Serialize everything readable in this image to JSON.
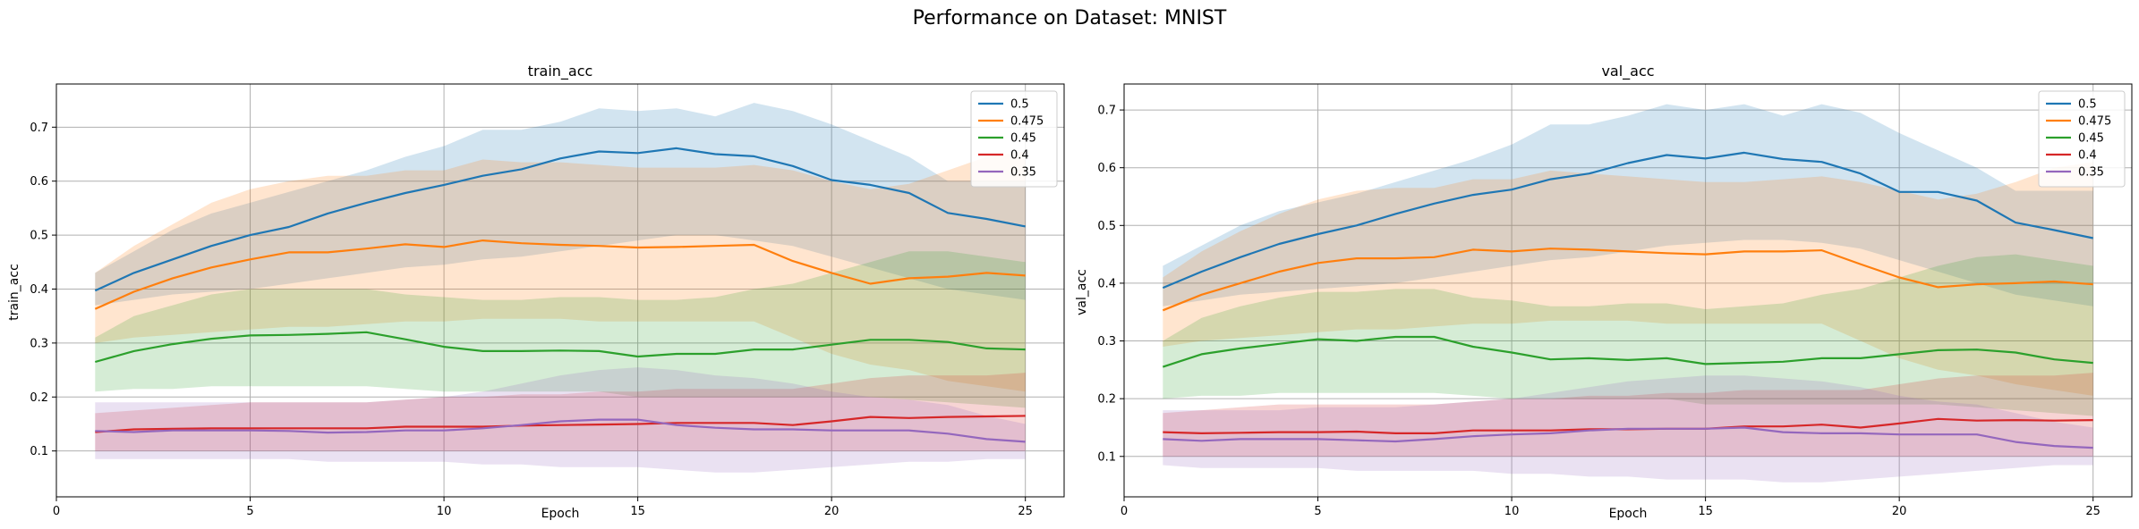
{
  "figure": {
    "title": "Performance on Dataset: MNIST"
  },
  "chart_data": [
    {
      "type": "line",
      "title": "train_acc",
      "xlabel": "Epoch",
      "ylabel": "train_acc",
      "xlim": [
        0,
        26
      ],
      "ylim": [
        0.015,
        0.78
      ],
      "xticks": [
        0,
        5,
        10,
        15,
        20,
        25
      ],
      "yticks": [
        0.1,
        0.2,
        0.3,
        0.4,
        0.5,
        0.6,
        0.7
      ],
      "grid": true,
      "legend_position": "top-right",
      "x": [
        1,
        2,
        3,
        4,
        5,
        6,
        7,
        8,
        9,
        10,
        11,
        12,
        13,
        14,
        15,
        16,
        17,
        18,
        19,
        20,
        21,
        22,
        23,
        24,
        25
      ],
      "series": [
        {
          "name": "0.5",
          "color": "#1f77b4",
          "values": [
            0.397,
            0.43,
            0.455,
            0.48,
            0.5,
            0.515,
            0.54,
            0.56,
            0.578,
            0.593,
            0.61,
            0.622,
            0.642,
            0.655,
            0.652,
            0.661,
            0.65,
            0.646,
            0.628,
            0.602,
            0.593,
            0.578,
            0.541,
            0.53,
            0.516
          ],
          "lower": [
            0.37,
            0.38,
            0.39,
            0.395,
            0.4,
            0.41,
            0.42,
            0.43,
            0.44,
            0.445,
            0.455,
            0.46,
            0.47,
            0.48,
            0.49,
            0.5,
            0.5,
            0.49,
            0.48,
            0.46,
            0.44,
            0.42,
            0.4,
            0.39,
            0.38
          ],
          "upper": [
            0.43,
            0.47,
            0.51,
            0.54,
            0.56,
            0.58,
            0.6,
            0.62,
            0.645,
            0.665,
            0.695,
            0.695,
            0.71,
            0.735,
            0.73,
            0.735,
            0.72,
            0.745,
            0.73,
            0.705,
            0.675,
            0.645,
            0.6,
            0.6,
            0.6
          ]
        },
        {
          "name": "0.475",
          "color": "#ff7f0e",
          "values": [
            0.363,
            0.395,
            0.42,
            0.44,
            0.455,
            0.468,
            0.468,
            0.475,
            0.483,
            0.478,
            0.49,
            0.485,
            0.482,
            0.48,
            0.477,
            0.478,
            0.48,
            0.482,
            0.452,
            0.43,
            0.41,
            0.42,
            0.423,
            0.43,
            0.425
          ],
          "lower": [
            0.3,
            0.31,
            0.315,
            0.32,
            0.325,
            0.33,
            0.33,
            0.335,
            0.34,
            0.34,
            0.345,
            0.345,
            0.345,
            0.34,
            0.34,
            0.34,
            0.34,
            0.34,
            0.31,
            0.28,
            0.26,
            0.25,
            0.23,
            0.22,
            0.21
          ],
          "upper": [
            0.43,
            0.48,
            0.52,
            0.56,
            0.585,
            0.6,
            0.61,
            0.61,
            0.62,
            0.62,
            0.64,
            0.635,
            0.635,
            0.63,
            0.625,
            0.625,
            0.625,
            0.63,
            0.62,
            0.6,
            0.585,
            0.595,
            0.62,
            0.645,
            0.655
          ]
        },
        {
          "name": "0.45",
          "color": "#2ca02c",
          "values": [
            0.265,
            0.285,
            0.298,
            0.308,
            0.314,
            0.315,
            0.317,
            0.32,
            0.307,
            0.293,
            0.285,
            0.285,
            0.286,
            0.285,
            0.275,
            0.28,
            0.28,
            0.288,
            0.288,
            0.297,
            0.306,
            0.306,
            0.302,
            0.29,
            0.288
          ],
          "lower": [
            0.21,
            0.215,
            0.215,
            0.22,
            0.22,
            0.22,
            0.22,
            0.22,
            0.215,
            0.21,
            0.21,
            0.21,
            0.21,
            0.21,
            0.2,
            0.2,
            0.2,
            0.2,
            0.2,
            0.2,
            0.2,
            0.195,
            0.19,
            0.185,
            0.18
          ],
          "upper": [
            0.31,
            0.35,
            0.37,
            0.39,
            0.4,
            0.4,
            0.4,
            0.4,
            0.39,
            0.385,
            0.38,
            0.38,
            0.385,
            0.385,
            0.38,
            0.38,
            0.385,
            0.4,
            0.41,
            0.43,
            0.45,
            0.47,
            0.47,
            0.46,
            0.45
          ]
        },
        {
          "name": "0.4",
          "color": "#d62728",
          "values": [
            0.135,
            0.14,
            0.141,
            0.142,
            0.142,
            0.142,
            0.142,
            0.142,
            0.145,
            0.145,
            0.145,
            0.147,
            0.148,
            0.149,
            0.15,
            0.152,
            0.152,
            0.152,
            0.148,
            0.155,
            0.163,
            0.161,
            0.163,
            0.164,
            0.165
          ],
          "lower": [
            0.1,
            0.1,
            0.1,
            0.1,
            0.1,
            0.1,
            0.1,
            0.1,
            0.1,
            0.1,
            0.1,
            0.1,
            0.1,
            0.1,
            0.1,
            0.1,
            0.1,
            0.1,
            0.1,
            0.1,
            0.1,
            0.1,
            0.1,
            0.1,
            0.1
          ],
          "upper": [
            0.17,
            0.175,
            0.18,
            0.185,
            0.19,
            0.19,
            0.19,
            0.19,
            0.195,
            0.2,
            0.2,
            0.205,
            0.205,
            0.21,
            0.21,
            0.215,
            0.215,
            0.215,
            0.215,
            0.225,
            0.235,
            0.24,
            0.24,
            0.24,
            0.245
          ]
        },
        {
          "name": "0.35",
          "color": "#9467bd",
          "values": [
            0.137,
            0.135,
            0.138,
            0.138,
            0.138,
            0.137,
            0.134,
            0.135,
            0.138,
            0.138,
            0.142,
            0.148,
            0.155,
            0.158,
            0.158,
            0.148,
            0.143,
            0.14,
            0.14,
            0.138,
            0.138,
            0.138,
            0.132,
            0.122,
            0.117
          ],
          "lower": [
            0.085,
            0.085,
            0.085,
            0.085,
            0.085,
            0.085,
            0.08,
            0.08,
            0.08,
            0.08,
            0.075,
            0.075,
            0.07,
            0.07,
            0.07,
            0.065,
            0.06,
            0.06,
            0.065,
            0.07,
            0.075,
            0.08,
            0.08,
            0.085,
            0.085
          ],
          "upper": [
            0.19,
            0.19,
            0.19,
            0.19,
            0.19,
            0.19,
            0.19,
            0.19,
            0.195,
            0.2,
            0.21,
            0.225,
            0.24,
            0.25,
            0.255,
            0.25,
            0.24,
            0.235,
            0.225,
            0.21,
            0.2,
            0.195,
            0.185,
            0.165,
            0.15
          ]
        }
      ]
    },
    {
      "type": "line",
      "title": "val_acc",
      "xlabel": "Epoch",
      "ylabel": "val_acc",
      "xlim": [
        0,
        26
      ],
      "ylim": [
        0.03,
        0.745
      ],
      "xticks": [
        0,
        5,
        10,
        15,
        20,
        25
      ],
      "yticks": [
        0.1,
        0.2,
        0.3,
        0.4,
        0.5,
        0.6,
        0.7
      ],
      "grid": true,
      "legend_position": "top-right",
      "x": [
        1,
        2,
        3,
        4,
        5,
        6,
        7,
        8,
        9,
        10,
        11,
        12,
        13,
        14,
        15,
        16,
        17,
        18,
        19,
        20,
        21,
        22,
        23,
        24,
        25
      ],
      "series": [
        {
          "name": "0.5",
          "color": "#1f77b4",
          "values": [
            0.392,
            0.42,
            0.445,
            0.468,
            0.485,
            0.5,
            0.52,
            0.538,
            0.553,
            0.562,
            0.58,
            0.59,
            0.608,
            0.622,
            0.616,
            0.626,
            0.615,
            0.61,
            0.59,
            0.558,
            0.558,
            0.543,
            0.505,
            0.492,
            0.478
          ],
          "lower": [
            0.36,
            0.37,
            0.38,
            0.385,
            0.39,
            0.395,
            0.4,
            0.41,
            0.42,
            0.43,
            0.44,
            0.445,
            0.455,
            0.465,
            0.47,
            0.475,
            0.475,
            0.47,
            0.46,
            0.44,
            0.42,
            0.4,
            0.38,
            0.37,
            0.36
          ],
          "upper": [
            0.43,
            0.465,
            0.5,
            0.525,
            0.54,
            0.555,
            0.575,
            0.595,
            0.615,
            0.64,
            0.675,
            0.675,
            0.69,
            0.71,
            0.7,
            0.71,
            0.69,
            0.71,
            0.695,
            0.66,
            0.63,
            0.6,
            0.56,
            0.56,
            0.56
          ]
        },
        {
          "name": "0.475",
          "color": "#ff7f0e",
          "values": [
            0.353,
            0.38,
            0.4,
            0.42,
            0.435,
            0.443,
            0.443,
            0.445,
            0.458,
            0.455,
            0.46,
            0.458,
            0.455,
            0.452,
            0.45,
            0.455,
            0.455,
            0.457,
            0.433,
            0.41,
            0.393,
            0.398,
            0.4,
            0.403,
            0.398
          ],
          "lower": [
            0.29,
            0.3,
            0.305,
            0.31,
            0.315,
            0.32,
            0.32,
            0.325,
            0.33,
            0.33,
            0.335,
            0.335,
            0.335,
            0.33,
            0.33,
            0.33,
            0.33,
            0.33,
            0.3,
            0.27,
            0.25,
            0.24,
            0.225,
            0.215,
            0.205
          ],
          "upper": [
            0.41,
            0.455,
            0.49,
            0.52,
            0.545,
            0.56,
            0.565,
            0.565,
            0.58,
            0.58,
            0.595,
            0.59,
            0.585,
            0.58,
            0.575,
            0.575,
            0.58,
            0.585,
            0.575,
            0.56,
            0.545,
            0.555,
            0.575,
            0.6,
            0.61
          ]
        },
        {
          "name": "0.45",
          "color": "#2ca02c",
          "values": [
            0.255,
            0.277,
            0.287,
            0.295,
            0.303,
            0.3,
            0.307,
            0.307,
            0.29,
            0.28,
            0.268,
            0.27,
            0.267,
            0.27,
            0.26,
            0.262,
            0.264,
            0.27,
            0.27,
            0.277,
            0.284,
            0.285,
            0.28,
            0.268,
            0.262
          ],
          "lower": [
            0.2,
            0.205,
            0.205,
            0.21,
            0.21,
            0.21,
            0.21,
            0.21,
            0.205,
            0.2,
            0.2,
            0.2,
            0.2,
            0.2,
            0.19,
            0.19,
            0.19,
            0.19,
            0.19,
            0.19,
            0.19,
            0.185,
            0.18,
            0.175,
            0.17
          ],
          "upper": [
            0.3,
            0.34,
            0.36,
            0.375,
            0.385,
            0.385,
            0.39,
            0.39,
            0.375,
            0.37,
            0.36,
            0.36,
            0.365,
            0.365,
            0.355,
            0.36,
            0.365,
            0.38,
            0.39,
            0.41,
            0.43,
            0.445,
            0.45,
            0.44,
            0.43
          ]
        },
        {
          "name": "0.4",
          "color": "#d62728",
          "values": [
            0.142,
            0.14,
            0.141,
            0.142,
            0.142,
            0.143,
            0.14,
            0.14,
            0.145,
            0.145,
            0.145,
            0.147,
            0.147,
            0.148,
            0.148,
            0.152,
            0.152,
            0.155,
            0.15,
            0.157,
            0.165,
            0.162,
            0.163,
            0.162,
            0.163
          ],
          "lower": [
            0.1,
            0.1,
            0.1,
            0.1,
            0.1,
            0.1,
            0.1,
            0.1,
            0.1,
            0.1,
            0.1,
            0.1,
            0.1,
            0.1,
            0.1,
            0.1,
            0.1,
            0.1,
            0.1,
            0.1,
            0.1,
            0.1,
            0.1,
            0.1,
            0.1
          ],
          "upper": [
            0.175,
            0.18,
            0.185,
            0.19,
            0.19,
            0.19,
            0.19,
            0.19,
            0.195,
            0.2,
            0.2,
            0.205,
            0.205,
            0.21,
            0.21,
            0.215,
            0.215,
            0.215,
            0.215,
            0.225,
            0.235,
            0.24,
            0.24,
            0.24,
            0.245
          ]
        },
        {
          "name": "0.35",
          "color": "#9467bd",
          "values": [
            0.13,
            0.127,
            0.13,
            0.13,
            0.13,
            0.128,
            0.126,
            0.13,
            0.135,
            0.138,
            0.14,
            0.145,
            0.148,
            0.148,
            0.148,
            0.15,
            0.142,
            0.14,
            0.14,
            0.138,
            0.138,
            0.138,
            0.125,
            0.118,
            0.115
          ],
          "lower": [
            0.085,
            0.08,
            0.08,
            0.08,
            0.08,
            0.075,
            0.075,
            0.075,
            0.075,
            0.07,
            0.07,
            0.065,
            0.065,
            0.06,
            0.06,
            0.06,
            0.055,
            0.055,
            0.06,
            0.065,
            0.07,
            0.075,
            0.08,
            0.085,
            0.085
          ],
          "upper": [
            0.18,
            0.18,
            0.18,
            0.18,
            0.185,
            0.185,
            0.185,
            0.19,
            0.195,
            0.2,
            0.21,
            0.22,
            0.23,
            0.235,
            0.24,
            0.24,
            0.235,
            0.23,
            0.22,
            0.205,
            0.195,
            0.19,
            0.175,
            0.16,
            0.15
          ]
        }
      ]
    }
  ]
}
